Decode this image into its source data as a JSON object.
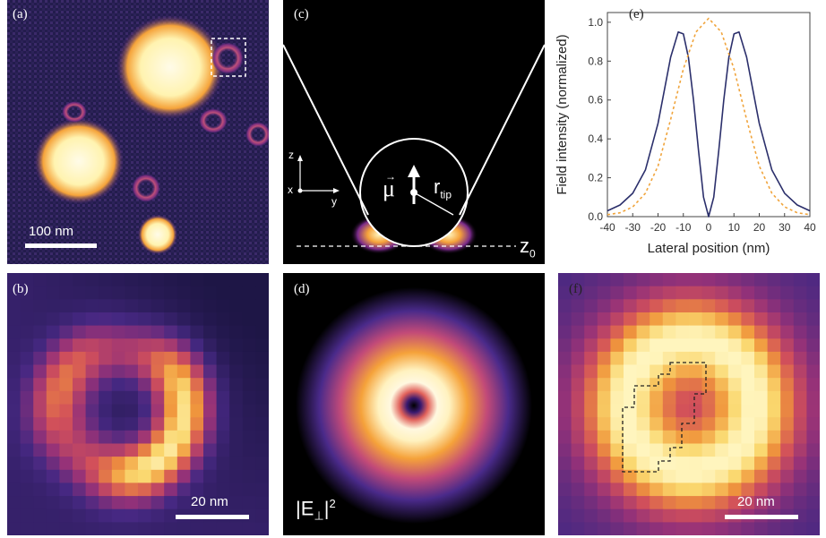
{
  "panels": {
    "a": {
      "label": "(a)",
      "scalebar": "100 nm"
    },
    "b": {
      "label": "(b)",
      "scalebar": "20 nm"
    },
    "c": {
      "label": "(c)",
      "axis_z": "z",
      "axis_x": "x",
      "axis_y": "y",
      "mu": "μ",
      "r": "r",
      "r_sub": "tip",
      "z0": "z",
      "z0_sub": "0"
    },
    "d": {
      "label": "(d)",
      "formula": "|E",
      "formula_sub": "⊥",
      "formula_end": "|",
      "formula_sup": "2"
    },
    "e": {
      "label": "(e)"
    },
    "f": {
      "label": "(f)",
      "scalebar": "20 nm"
    }
  },
  "chart_data": {
    "type": "line",
    "xlabel": "Lateral position (nm)",
    "ylabel": "Field intensity (normalized)",
    "xlim": [
      -40,
      40
    ],
    "ylim": [
      0,
      1.05
    ],
    "xticks": [
      "-40",
      "-30",
      "-20",
      "-10",
      "0",
      "10",
      "20",
      "30",
      "40"
    ],
    "yticks": [
      "0.0",
      "0.2",
      "0.4",
      "0.6",
      "0.8",
      "1.0"
    ],
    "series": [
      {
        "style": "solid",
        "color": "#2b2f6b",
        "x": [
          -40,
          -35,
          -30,
          -25,
          -20,
          -15,
          -12,
          -10,
          -8,
          -6,
          -4,
          -2,
          0,
          2,
          4,
          6,
          8,
          10,
          12,
          15,
          20,
          25,
          30,
          35,
          40
        ],
        "y": [
          0.03,
          0.06,
          0.12,
          0.24,
          0.48,
          0.82,
          0.95,
          0.94,
          0.82,
          0.6,
          0.34,
          0.1,
          0.0,
          0.1,
          0.34,
          0.6,
          0.82,
          0.94,
          0.95,
          0.82,
          0.48,
          0.24,
          0.12,
          0.06,
          0.03
        ]
      },
      {
        "style": "dashed",
        "color": "#f0a43c",
        "x": [
          -40,
          -35,
          -30,
          -25,
          -20,
          -15,
          -10,
          -5,
          0,
          5,
          10,
          15,
          20,
          25,
          30,
          35,
          40
        ],
        "y": [
          0.01,
          0.02,
          0.05,
          0.12,
          0.26,
          0.5,
          0.76,
          0.95,
          1.02,
          0.95,
          0.76,
          0.5,
          0.26,
          0.12,
          0.05,
          0.02,
          0.01
        ]
      }
    ]
  }
}
